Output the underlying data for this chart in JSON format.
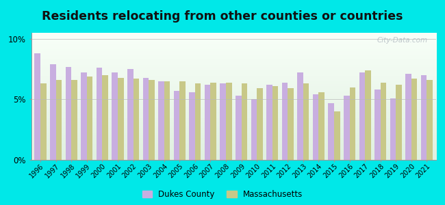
{
  "title": "Residents relocating from other counties or countries",
  "years": [
    1996,
    1997,
    1998,
    1999,
    2000,
    2001,
    2002,
    2003,
    2004,
    2005,
    2006,
    2007,
    2008,
    2009,
    2010,
    2011,
    2012,
    2013,
    2014,
    2015,
    2016,
    2017,
    2018,
    2019,
    2020,
    2021
  ],
  "dukes": [
    8.8,
    7.9,
    7.7,
    7.2,
    7.6,
    7.2,
    7.5,
    6.8,
    6.5,
    5.7,
    5.6,
    6.2,
    6.3,
    5.3,
    5.0,
    6.2,
    6.4,
    7.2,
    5.4,
    4.7,
    5.3,
    7.2,
    5.8,
    5.1,
    7.1,
    7.0
  ],
  "massachusetts": [
    6.3,
    6.6,
    6.6,
    6.9,
    7.0,
    6.8,
    6.7,
    6.6,
    6.5,
    6.5,
    6.3,
    6.4,
    6.4,
    6.3,
    5.9,
    6.1,
    5.9,
    6.3,
    5.6,
    4.0,
    6.0,
    7.4,
    6.4,
    6.2,
    6.7,
    6.6
  ],
  "dukes_color": "#c8aee0",
  "mass_color": "#c8c888",
  "bg_color_top": "#f8fff8",
  "bg_color_bottom": "#e0f0e0",
  "outer_bg": "#00e8e8",
  "yticks": [
    0,
    5,
    10
  ],
  "ylim": [
    0,
    10.5
  ],
  "legend_dukes": "Dukes County",
  "legend_mass": "Massachusetts",
  "title_fontsize": 12.5,
  "watermark": "City-Data.com"
}
